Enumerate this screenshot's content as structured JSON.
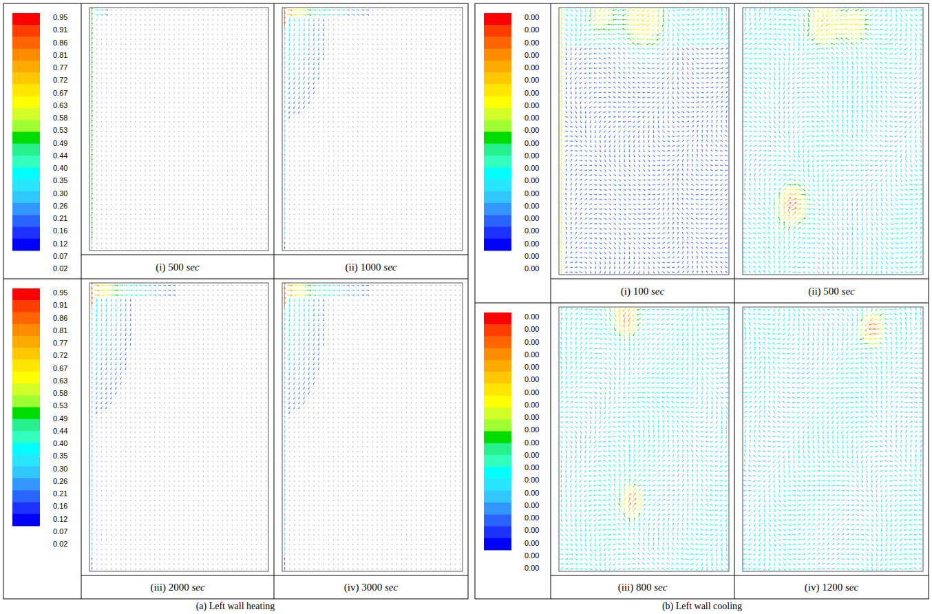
{
  "chart_data": [
    {
      "type": "vector_field",
      "title": "(a) Left wall heating",
      "subplots": [
        "(i) 500 sec",
        "(ii) 1000 sec",
        "(iii) 2000 sec",
        "(iv) 3000 sec"
      ],
      "colorbar": {
        "ticks": [
          0.95,
          0.91,
          0.86,
          0.81,
          0.77,
          0.72,
          0.67,
          0.63,
          0.58,
          0.53,
          0.49,
          0.44,
          {
            "value": 0.4,
            "label": "0.40"
          },
          0.35,
          {
            "value": 0.3,
            "label": "0.30"
          },
          0.26,
          0.21,
          0.16,
          0.12,
          0.07,
          0.02
        ],
        "colors": [
          "#ff0000",
          "#ff3c00",
          "#ff6400",
          "#ff8c00",
          "#ffaa00",
          "#ffc800",
          "#ffe600",
          "#ffff00",
          "#d2ff28",
          "#a0ff32",
          "#00dc00",
          "#28f08c",
          "#32ffbe",
          "#00ffff",
          "#28e6ff",
          "#32c8ff",
          "#3296ff",
          "#2864ff",
          "#1e32ff",
          "#0000ff"
        ]
      }
    },
    {
      "type": "vector_field",
      "title": "(b) Left wall cooling",
      "subplots": [
        "(i) 100 sec",
        "(ii) 500 sec",
        "(iii) 800 sec",
        "(iv) 1200 sec"
      ],
      "colorbar": {
        "ticks": [
          {
            "value": 0,
            "label": "0.00"
          },
          {
            "value": 0,
            "label": "0.00"
          },
          {
            "value": 0,
            "label": "0.00"
          },
          {
            "value": 0,
            "label": "0.00"
          },
          {
            "value": 0,
            "label": "0.00"
          },
          {
            "value": 0,
            "label": "0.00"
          },
          {
            "value": 0,
            "label": "0.00"
          },
          {
            "value": 0,
            "label": "0.00"
          },
          {
            "value": 0,
            "label": "0.00"
          },
          {
            "value": 0,
            "label": "0.00"
          },
          {
            "value": 0,
            "label": "0.00"
          },
          {
            "value": 0,
            "label": "0.00"
          },
          {
            "value": 0,
            "label": "0.00"
          },
          {
            "value": 0,
            "label": "0.00"
          },
          {
            "value": 0,
            "label": "0.00"
          },
          {
            "value": 0,
            "label": "0.00"
          },
          {
            "value": 0,
            "label": "0.00"
          },
          {
            "value": 0,
            "label": "0.00"
          },
          {
            "value": 0,
            "label": "0.00"
          },
          {
            "value": 0,
            "label": "0.00"
          },
          {
            "value": 0,
            "label": "0.00"
          }
        ],
        "colors": [
          "#ff0000",
          "#ff3c00",
          "#ff6400",
          "#ff8c00",
          "#ffaa00",
          "#ffc800",
          "#ffe600",
          "#ffff00",
          "#d2ff28",
          "#a0ff32",
          "#00dc00",
          "#28f08c",
          "#32ffbe",
          "#00ffff",
          "#28e6ff",
          "#32c8ff",
          "#3296ff",
          "#2864ff",
          "#1e32ff",
          "#0000ff"
        ]
      }
    }
  ]
}
